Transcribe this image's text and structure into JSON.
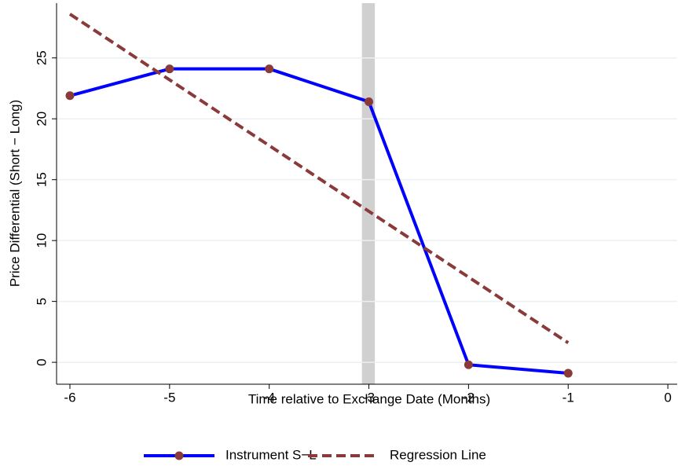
{
  "chart_data": {
    "type": "line",
    "x_label": "Time relative to Exchange Date (Months)",
    "y_label": "Price Differential (Short − Long)",
    "xlim": [
      -6.134,
      0.094
    ],
    "xticks": [
      -6,
      -5,
      -4,
      -3,
      -2,
      -1,
      0
    ],
    "ylim": [
      -1.8,
      29.5
    ],
    "yticks": [
      0,
      5,
      10,
      15,
      20,
      25
    ],
    "grid": true,
    "legend": "bottom",
    "highlight_x_range": [
      -3.07,
      -2.94
    ],
    "highlight_color": "#d0d0d0",
    "series": [
      {
        "name": "Instrument S−L",
        "color": "#0000ff",
        "marker_color": "#8b3a3a",
        "style": "solid",
        "markers": true,
        "x": [
          -6,
          -5,
          -4,
          -3,
          -2,
          -1
        ],
        "values": [
          21.9,
          24.1,
          24.1,
          21.4,
          -0.2,
          -0.9
        ]
      },
      {
        "name": "Regression Line",
        "color": "#8b3a3a",
        "style": "dashed",
        "markers": false,
        "x": [
          -6,
          -1
        ],
        "values": [
          28.6,
          1.6
        ]
      }
    ]
  }
}
